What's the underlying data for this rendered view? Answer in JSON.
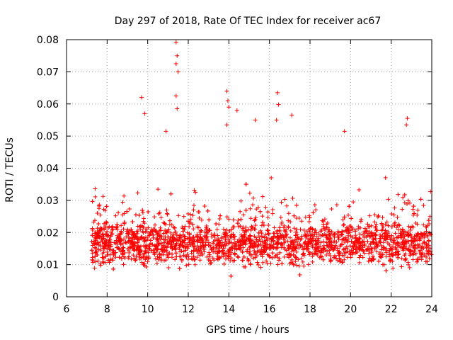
{
  "chart_data": {
    "type": "scatter",
    "title": "Day 297 of 2018, Rate Of TEC Index for receiver ac67",
    "xlabel": "GPS time / hours",
    "ylabel": "ROTI / TECUs",
    "xlim": [
      6,
      24
    ],
    "ylim": [
      0,
      0.08
    ],
    "xticks": [
      6,
      8,
      10,
      12,
      14,
      16,
      18,
      20,
      22,
      24
    ],
    "yticks": [
      0,
      0.01,
      0.02,
      0.03,
      0.04,
      0.05,
      0.06,
      0.07,
      0.08
    ],
    "xtick_labels": [
      "6",
      "8",
      "10",
      "12",
      "14",
      "16",
      "18",
      "20",
      "22",
      "24"
    ],
    "ytick_labels": [
      "0",
      "0.01",
      "0.02",
      "0.03",
      "0.04",
      "0.05",
      "0.06",
      "0.07",
      "0.08"
    ],
    "grid": true,
    "marker": "+",
    "color": "#ff0000",
    "series": [
      {
        "name": "ROTI",
        "x_range": [
          7.2,
          24.0
        ],
        "typical_band": [
          0.005,
          0.04
        ],
        "outliers": [
          {
            "x": 9.7,
            "y": 0.062
          },
          {
            "x": 9.85,
            "y": 0.057
          },
          {
            "x": 11.4,
            "y": 0.0792
          },
          {
            "x": 11.45,
            "y": 0.075
          },
          {
            "x": 11.4,
            "y": 0.0725
          },
          {
            "x": 11.5,
            "y": 0.07
          },
          {
            "x": 11.4,
            "y": 0.0625
          },
          {
            "x": 11.45,
            "y": 0.0585
          },
          {
            "x": 13.9,
            "y": 0.064
          },
          {
            "x": 13.95,
            "y": 0.061
          },
          {
            "x": 14.0,
            "y": 0.059
          },
          {
            "x": 13.9,
            "y": 0.0535
          },
          {
            "x": 14.4,
            "y": 0.058
          },
          {
            "x": 16.4,
            "y": 0.0635
          },
          {
            "x": 16.45,
            "y": 0.0598
          },
          {
            "x": 16.35,
            "y": 0.055
          },
          {
            "x": 17.1,
            "y": 0.0565
          },
          {
            "x": 15.3,
            "y": 0.055
          },
          {
            "x": 22.8,
            "y": 0.0555
          },
          {
            "x": 22.75,
            "y": 0.0535
          },
          {
            "x": 19.7,
            "y": 0.0515
          },
          {
            "x": 10.9,
            "y": 0.0515
          }
        ]
      }
    ]
  }
}
